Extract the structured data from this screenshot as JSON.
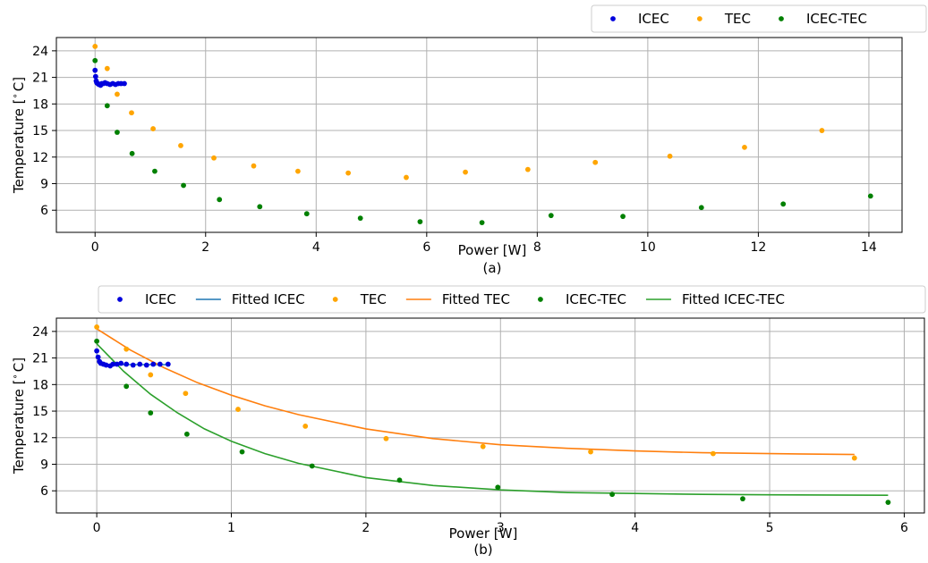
{
  "colors": {
    "icec": "#0000dd",
    "tec": "#ffa500",
    "icec_tec": "#008000",
    "fit_icec": "#1f77b4",
    "fit_tec": "#ff7f0e",
    "fit_icec_tec": "#2ca02c"
  },
  "chart_data": [
    {
      "type": "scatter",
      "caption": "(a)",
      "xlabel": "Power [W]",
      "ylabel": "Temperature [$^\\circ$C]",
      "xlim": [
        -0.7,
        14.6
      ],
      "ylim": [
        3.5,
        25.5
      ],
      "xticks": [
        0,
        2,
        4,
        6,
        8,
        10,
        12,
        14
      ],
      "yticks": [
        6,
        9,
        12,
        15,
        18,
        21,
        24
      ],
      "grid": true,
      "legend_position": "top-right, above plot",
      "series": [
        {
          "name": "ICEC",
          "kind": "points",
          "color": "#0000dd",
          "x": [
            0.0,
            0.01,
            0.02,
            0.03,
            0.05,
            0.07,
            0.1,
            0.12,
            0.15,
            0.18,
            0.22,
            0.27,
            0.32,
            0.37,
            0.42,
            0.47,
            0.53
          ],
          "y": [
            21.8,
            21.1,
            20.6,
            20.4,
            20.3,
            20.2,
            20.1,
            20.3,
            20.3,
            20.4,
            20.3,
            20.2,
            20.3,
            20.2,
            20.3,
            20.3,
            20.3
          ]
        },
        {
          "name": "TEC",
          "kind": "points",
          "color": "#ffa500",
          "x": [
            0.0,
            0.22,
            0.4,
            0.66,
            1.05,
            1.55,
            2.15,
            2.87,
            3.67,
            4.58,
            5.63,
            6.7,
            7.83,
            9.05,
            10.4,
            11.75,
            13.15
          ],
          "y": [
            24.5,
            22.0,
            19.1,
            17.0,
            15.2,
            13.3,
            11.9,
            11.0,
            10.4,
            10.2,
            9.7,
            10.3,
            10.6,
            11.4,
            12.1,
            13.1,
            15.0
          ]
        },
        {
          "name": "ICEC-TEC",
          "kind": "points",
          "color": "#008000",
          "x": [
            0.0,
            0.22,
            0.4,
            0.67,
            1.08,
            1.6,
            2.25,
            2.98,
            3.83,
            4.8,
            5.88,
            7.0,
            8.25,
            9.55,
            10.97,
            12.45,
            14.03
          ],
          "y": [
            22.9,
            17.8,
            14.8,
            12.4,
            10.4,
            8.8,
            7.2,
            6.4,
            5.6,
            5.1,
            4.7,
            4.6,
            5.4,
            5.3,
            6.3,
            6.7,
            7.6
          ]
        }
      ]
    },
    {
      "type": "scatter",
      "caption": "(b)",
      "xlabel": "Power [W]",
      "ylabel": "Temperature [$^\\circ$C]",
      "xlim": [
        -0.3,
        6.15
      ],
      "ylim": [
        3.5,
        25.5
      ],
      "xticks": [
        0,
        1,
        2,
        3,
        4,
        5,
        6
      ],
      "yticks": [
        6,
        9,
        12,
        15,
        18,
        21,
        24
      ],
      "grid": true,
      "legend_position": "top-right, above plot",
      "series": [
        {
          "name": "ICEC",
          "kind": "points",
          "color": "#0000dd",
          "x": [
            0.0,
            0.01,
            0.02,
            0.03,
            0.05,
            0.07,
            0.1,
            0.12,
            0.15,
            0.18,
            0.22,
            0.27,
            0.32,
            0.37,
            0.42,
            0.47,
            0.53
          ],
          "y": [
            21.8,
            21.1,
            20.6,
            20.4,
            20.3,
            20.2,
            20.1,
            20.3,
            20.3,
            20.4,
            20.3,
            20.2,
            20.3,
            20.2,
            20.3,
            20.3,
            20.3
          ]
        },
        {
          "name": "Fitted ICEC",
          "kind": "line",
          "color": "#1f77b4",
          "x": [
            0.0,
            0.02,
            0.04,
            0.07,
            0.1,
            0.15,
            0.2,
            0.3,
            0.4,
            0.53
          ],
          "y": [
            21.4,
            20.8,
            20.5,
            20.3,
            20.25,
            20.25,
            20.25,
            20.25,
            20.25,
            20.25
          ]
        },
        {
          "name": "TEC",
          "kind": "points",
          "color": "#ffa500",
          "x": [
            0.0,
            0.22,
            0.4,
            0.66,
            1.05,
            1.55,
            2.15,
            2.87,
            3.67,
            4.58,
            5.63
          ],
          "y": [
            24.5,
            22.0,
            19.1,
            17.0,
            15.2,
            13.3,
            11.9,
            11.0,
            10.4,
            10.2,
            9.7
          ]
        },
        {
          "name": "Fitted TEC",
          "kind": "line",
          "color": "#ff7f0e",
          "x": [
            0.0,
            0.25,
            0.5,
            0.75,
            1.0,
            1.25,
            1.5,
            2.0,
            2.5,
            3.0,
            3.5,
            4.0,
            4.5,
            5.0,
            5.63
          ],
          "y": [
            24.3,
            21.9,
            19.9,
            18.2,
            16.8,
            15.6,
            14.6,
            13.0,
            11.9,
            11.2,
            10.8,
            10.5,
            10.3,
            10.2,
            10.1
          ]
        },
        {
          "name": "ICEC-TEC",
          "kind": "points",
          "color": "#008000",
          "x": [
            0.0,
            0.22,
            0.4,
            0.67,
            1.08,
            1.6,
            2.25,
            2.98,
            3.83,
            4.8,
            5.88
          ],
          "y": [
            22.9,
            17.8,
            14.8,
            12.4,
            10.4,
            8.8,
            7.2,
            6.4,
            5.6,
            5.1,
            4.7
          ]
        },
        {
          "name": "Fitted ICEC-TEC",
          "kind": "line",
          "color": "#2ca02c",
          "x": [
            0.0,
            0.2,
            0.4,
            0.6,
            0.8,
            1.0,
            1.25,
            1.5,
            2.0,
            2.5,
            3.0,
            3.5,
            4.0,
            4.5,
            5.0,
            5.88
          ],
          "y": [
            22.6,
            19.5,
            16.9,
            14.8,
            13.0,
            11.6,
            10.2,
            9.1,
            7.5,
            6.6,
            6.1,
            5.8,
            5.7,
            5.6,
            5.55,
            5.5
          ]
        }
      ]
    }
  ]
}
